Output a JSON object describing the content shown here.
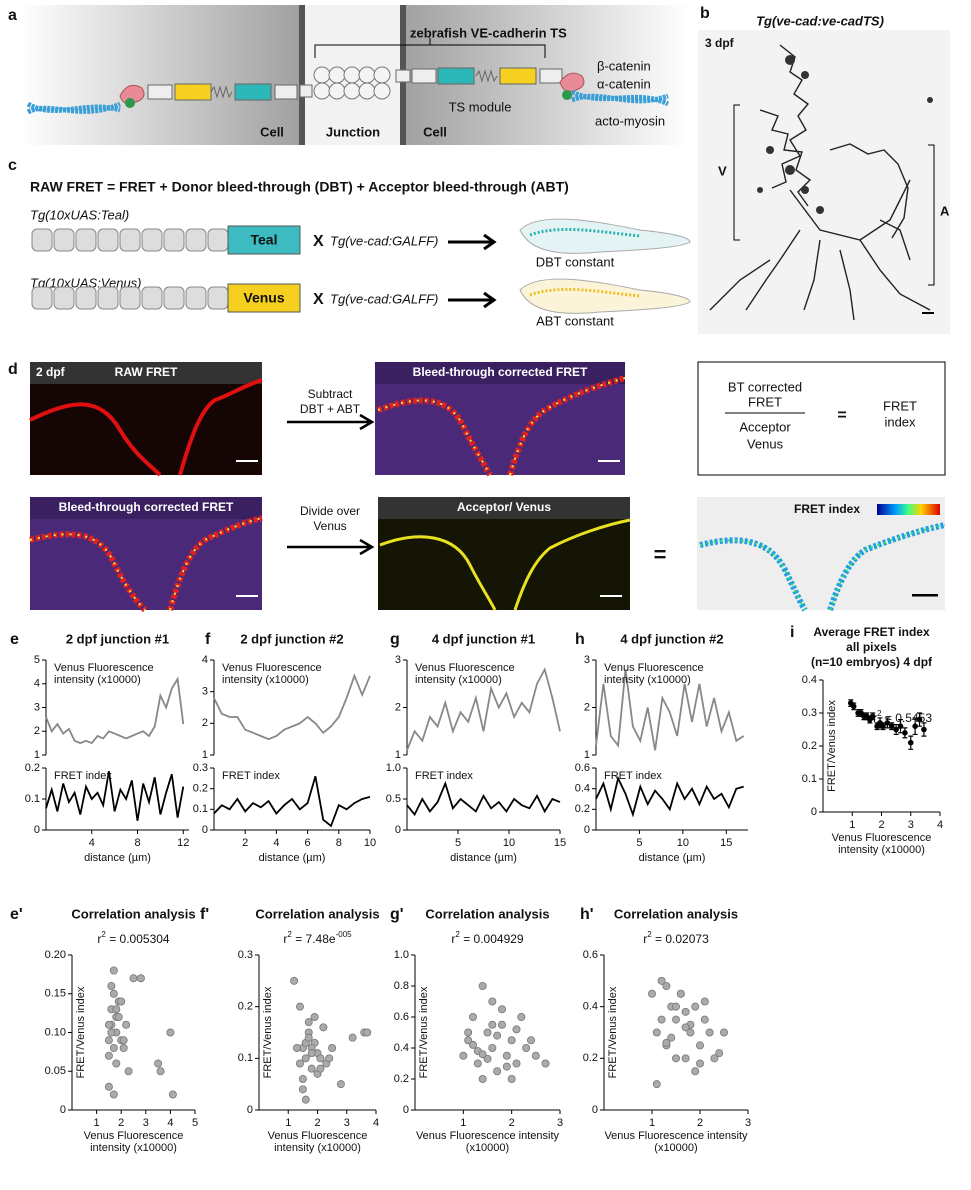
{
  "panels": {
    "a": {
      "letter": "a",
      "title": "zebrafish VE-cadherin TS",
      "labels": [
        "Cell",
        "Junction",
        "Cell"
      ],
      "ts_module": "TS module",
      "beta": "β-catenin",
      "alpha": "α-catenin",
      "acto": "acto-myosin"
    },
    "b": {
      "letter": "b",
      "title": "Tg(ve-cad:ve-cadTS)",
      "stage": "3 dpf",
      "v": "V",
      "a": "A"
    },
    "c": {
      "letter": "c",
      "equation": "RAW FRET = FRET + Donor bleed-through (DBT) + Acceptor bleed-through (ABT)",
      "rows": [
        {
          "transgene": "Tg(10xUAS:Teal)",
          "fp": "Teal",
          "cross": "X",
          "driver": "Tg(ve-cad:GALFF)",
          "result": "DBT constant"
        },
        {
          "transgene": "Tg(10xUAS:Venus)",
          "fp": "Venus",
          "cross": "X",
          "driver": "Tg(ve-cad:GALFF)",
          "result": "ABT constant"
        }
      ]
    },
    "d": {
      "letter": "d",
      "stage": "2 dpf",
      "images": [
        "RAW FRET",
        "Bleed-through corrected FRET",
        "Bleed-through corrected FRET",
        "Acceptor/ Venus",
        "FRET index"
      ],
      "steps": [
        [
          "Subtract",
          "DBT + ABT"
        ],
        [
          "Divide over",
          "Venus"
        ]
      ],
      "equals": "=",
      "formula": {
        "numerator": [
          "BT corrected",
          "FRET"
        ],
        "denominator": [
          "Acceptor",
          "Venus"
        ],
        "equals": "=",
        "result": [
          "FRET",
          "index"
        ]
      }
    }
  },
  "chart_data": [
    {
      "type": "line",
      "letter": "e",
      "title": "2 dpf junction #1",
      "xlabel": "distance (µm)",
      "xlim": [
        0,
        12.5
      ],
      "xticks": [
        4,
        8,
        12
      ],
      "x": [
        0,
        0.5,
        1,
        1.5,
        2,
        2.5,
        3,
        3.5,
        4,
        4.5,
        5,
        5.5,
        6,
        6.5,
        7,
        7.5,
        8,
        8.5,
        9,
        9.5,
        10,
        10.5,
        11,
        11.5,
        12
      ],
      "ylim": [
        1,
        5
      ],
      "yticks": [
        1,
        2,
        3,
        4,
        5
      ],
      "y2lim": [
        0,
        0.2
      ],
      "y2ticks": [
        0,
        0.1,
        0.2
      ],
      "series": [
        {
          "name": "Venus Fluorescence intensity (x10000)",
          "color": "#888888",
          "values": [
            2.6,
            2,
            2.3,
            1.9,
            2.1,
            1.6,
            1.5,
            1.6,
            1.5,
            1.8,
            1.7,
            2.0,
            1.9,
            1.8,
            1.7,
            1.8,
            1.9,
            2.0,
            1.8,
            2.2,
            3.5,
            3.0,
            3.8,
            4.2,
            2.3
          ]
        },
        {
          "name": "FRET index",
          "color": "#000000",
          "axis": "y2",
          "values": [
            0.07,
            0.13,
            0.06,
            0.15,
            0.09,
            0.12,
            0.05,
            0.14,
            0.1,
            0.12,
            0.08,
            0.19,
            0.06,
            0.13,
            0.1,
            0.16,
            0.03,
            0.15,
            0.09,
            0.17,
            0.05,
            0.12,
            0.18,
            0.04,
            0.14
          ]
        }
      ]
    },
    {
      "type": "line",
      "letter": "f",
      "title": "2 dpf junction #2",
      "xlabel": "distance (µm)",
      "xlim": [
        0,
        10
      ],
      "xticks": [
        2,
        4,
        6,
        8,
        10
      ],
      "x": [
        0,
        0.5,
        1,
        1.5,
        2,
        2.5,
        3,
        3.5,
        4,
        4.5,
        5,
        5.5,
        6,
        6.5,
        7,
        7.5,
        8,
        8.5,
        9,
        9.5,
        10
      ],
      "ylim": [
        1,
        4
      ],
      "yticks": [
        1,
        2,
        3,
        4
      ],
      "y2lim": [
        0,
        0.3
      ],
      "y2ticks": [
        0,
        0.1,
        0.2,
        0.3
      ],
      "series": [
        {
          "name": "Venus Fluorescence intensity (x10000)",
          "color": "#888888",
          "values": [
            2.8,
            2.3,
            2.2,
            2.2,
            1.8,
            1.7,
            1.6,
            1.5,
            1.6,
            1.8,
            1.9,
            2.0,
            2.2,
            2.0,
            1.7,
            1.9,
            2.2,
            2.8,
            3.5,
            2.9,
            3.5
          ]
        },
        {
          "name": "FRET index",
          "color": "#000000",
          "axis": "y2",
          "values": [
            0.08,
            0.12,
            0.1,
            0.15,
            0.09,
            0.13,
            0.11,
            0.14,
            0.08,
            0.12,
            0.15,
            0.1,
            0.13,
            0.26,
            0.05,
            0.02,
            0.12,
            0.1,
            0.13,
            0.15,
            0.16
          ]
        }
      ]
    },
    {
      "type": "line",
      "letter": "g",
      "title": "4 dpf junction #1",
      "xlabel": "distance (µm)",
      "xlim": [
        0,
        15
      ],
      "xticks": [
        5,
        10,
        15
      ],
      "x": [
        0,
        0.75,
        1.5,
        2.25,
        3,
        3.75,
        4.5,
        5.25,
        6,
        6.75,
        7.5,
        8.25,
        9,
        9.75,
        10.5,
        11.25,
        12,
        12.75,
        13.5,
        14.25,
        15
      ],
      "ylim": [
        1,
        3
      ],
      "yticks": [
        1,
        2,
        3
      ],
      "y2lim": [
        0,
        1
      ],
      "y2ticks": [
        0,
        0.5,
        {
          "value": 1,
          "label": "1.0"
        }
      ],
      "series": [
        {
          "name": "Venus Fluorescence intensity (x10000)",
          "color": "#888888",
          "values": [
            1.1,
            1.5,
            1.3,
            1.8,
            1.6,
            2.1,
            1.5,
            1.9,
            1.7,
            2.2,
            1.5,
            2.4,
            2.0,
            2.3,
            1.8,
            2.1,
            1.9,
            2.5,
            2.8,
            2.2,
            1.5
          ]
        },
        {
          "name": "FRET index",
          "color": "#000000",
          "axis": "y2",
          "values": [
            0.4,
            0.25,
            0.5,
            0.3,
            0.45,
            0.75,
            0.35,
            0.5,
            0.4,
            0.3,
            0.55,
            0.35,
            0.45,
            0.3,
            0.5,
            0.4,
            0.35,
            0.55,
            0.3,
            0.5,
            0.45
          ]
        }
      ]
    },
    {
      "type": "line",
      "letter": "h",
      "title": "4 dpf junction #2",
      "xlabel": "distance (µm)",
      "xlim": [
        0,
        17.5
      ],
      "xticks": [
        5,
        10,
        15
      ],
      "x": [
        0,
        0.85,
        1.7,
        2.55,
        3.4,
        4.25,
        5.1,
        5.95,
        6.8,
        7.65,
        8.5,
        9.35,
        10.2,
        11.05,
        11.9,
        12.75,
        13.6,
        14.45,
        15.3,
        16.15,
        17
      ],
      "ylim": [
        1,
        3
      ],
      "yticks": [
        1,
        2,
        3
      ],
      "y2lim": [
        0,
        0.6
      ],
      "y2ticks": [
        0,
        0.2,
        0.4,
        0.6
      ],
      "series": [
        {
          "name": "Venus Fluorescence intensity (x10000)",
          "color": "#888888",
          "values": [
            1.2,
            2.5,
            1.4,
            1.2,
            2.8,
            1.6,
            1.3,
            2.0,
            1.1,
            2.2,
            1.9,
            1.4,
            2.5,
            1.7,
            2.5,
            1.6,
            2.2,
            1.5,
            1.9,
            1.3,
            1.4
          ]
        },
        {
          "name": "FRET index",
          "color": "#000000",
          "axis": "y2",
          "values": [
            0.3,
            0.45,
            0.2,
            0.5,
            0.35,
            0.15,
            0.42,
            0.25,
            0.38,
            0.3,
            0.2,
            0.45,
            0.3,
            0.4,
            0.25,
            0.42,
            0.3,
            0.35,
            0.22,
            0.4,
            0.42
          ]
        }
      ]
    },
    {
      "type": "scatter",
      "letter": "i",
      "title": [
        "Average FRET index",
        "all pixels",
        "(n=10 embryos) 4 dpf"
      ],
      "annotation": [
        {
          "text": "r"
        },
        {
          "text": "2",
          "sup": true
        },
        {
          "text": " = 0.5453"
        }
      ],
      "xlabel": "Venus Fluorescence intensity (x10000)",
      "ylabel": "FRET/Venus index",
      "color": "#000000",
      "xlim": [
        0,
        4
      ],
      "xticks": [
        1,
        2,
        3,
        4
      ],
      "ylim": [
        0,
        0.4
      ],
      "yticks": [
        0,
        0.1,
        0.2,
        0.3,
        0.4
      ],
      "x": [
        0.95,
        1.05,
        1.2,
        1.3,
        1.4,
        1.5,
        1.6,
        1.7,
        1.85,
        1.95,
        2.05,
        2.2,
        2.35,
        2.5,
        2.65,
        2.8,
        3.0,
        3.15,
        3.3,
        3.45
      ],
      "values": [
        0.33,
        0.32,
        0.3,
        0.3,
        0.29,
        0.29,
        0.28,
        0.29,
        0.26,
        0.27,
        0.26,
        0.27,
        0.26,
        0.25,
        0.26,
        0.24,
        0.21,
        0.26,
        0.28,
        0.25
      ],
      "errors": [
        0.01,
        0.01,
        0.01,
        0.01,
        0.01,
        0.01,
        0.01,
        0.01,
        0.01,
        0.015,
        0.01,
        0.015,
        0.01,
        0.015,
        0.02,
        0.015,
        0.02,
        0.025,
        0.02,
        0.02
      ]
    },
    {
      "type": "scatter",
      "letter": "e'",
      "title": "Correlation analysis",
      "annotation": [
        {
          "text": "r"
        },
        {
          "text": "2",
          "sup": true
        },
        {
          "text": " = 0.005304"
        }
      ],
      "xlabel": "Venus Fluorescence intensity (x10000)",
      "ylabel": "FRET/Venus index",
      "color": "#aaaaaa",
      "xlim": [
        0,
        5
      ],
      "xticks": [
        1,
        2,
        3,
        4,
        5
      ],
      "ylim": [
        0,
        0.2
      ],
      "yticks": [
        0,
        0.05,
        {
          "value": 0.1,
          "label": "0.10"
        },
        0.15,
        {
          "value": 0.2,
          "label": "0.20"
        }
      ],
      "x": [
        1.5,
        1.6,
        1.7,
        1.8,
        1.5,
        1.6,
        1.9,
        2.0,
        1.7,
        1.8,
        2.1,
        2.2,
        1.5,
        1.6,
        1.8,
        2.5,
        2.8,
        3.5,
        3.6,
        4.0,
        4.1,
        1.7,
        1.9,
        2.0,
        2.3,
        1.6,
        1.8,
        2.1,
        1.5,
        1.7
      ],
      "values": [
        0.09,
        0.13,
        0.18,
        0.1,
        0.07,
        0.11,
        0.14,
        0.09,
        0.02,
        0.12,
        0.08,
        0.11,
        0.03,
        0.16,
        0.06,
        0.17,
        0.17,
        0.06,
        0.05,
        0.1,
        0.02,
        0.08,
        0.12,
        0.14,
        0.05,
        0.1,
        0.13,
        0.09,
        0.11,
        0.15
      ]
    },
    {
      "type": "scatter",
      "letter": "f'",
      "title": "Correlation analysis",
      "annotation": [
        {
          "text": "r"
        },
        {
          "text": "2",
          "sup": true
        },
        {
          "text": " = 7.48e"
        },
        {
          "text": "-005",
          "sup": true
        }
      ],
      "xlabel": "Venus Fluorescence intensity (x10000)",
      "ylabel": "FRET/Venus index",
      "color": "#aaaaaa",
      "xlim": [
        0,
        4
      ],
      "xticks": [
        1,
        2,
        3,
        4
      ],
      "ylim": [
        0,
        0.3
      ],
      "yticks": [
        0,
        0.1,
        0.2,
        0.3
      ],
      "x": [
        1.2,
        1.4,
        1.5,
        1.6,
        1.7,
        1.8,
        1.9,
        2.0,
        1.5,
        1.6,
        1.7,
        1.8,
        2.1,
        2.2,
        2.3,
        2.5,
        2.8,
        3.2,
        3.6,
        3.7,
        1.4,
        1.6,
        1.9,
        2.0,
        1.8,
        1.5,
        2.4,
        1.7,
        1.3,
        2.1
      ],
      "values": [
        0.25,
        0.2,
        0.12,
        0.1,
        0.15,
        0.08,
        0.13,
        0.11,
        0.06,
        0.02,
        0.17,
        0.12,
        0.1,
        0.16,
        0.09,
        0.12,
        0.05,
        0.14,
        0.15,
        0.15,
        0.09,
        0.13,
        0.18,
        0.07,
        0.11,
        0.04,
        0.1,
        0.14,
        0.12,
        0.08
      ]
    },
    {
      "type": "scatter",
      "letter": "g'",
      "title": "Correlation analysis",
      "annotation": [
        {
          "text": "r"
        },
        {
          "text": "2",
          "sup": true
        },
        {
          "text": " = 0.004929"
        }
      ],
      "xlabel": "Venus Fluorescence intensity (x10000)",
      "ylabel": "FRET/Venus index",
      "color": "#aaaaaa",
      "xlim": [
        0,
        3
      ],
      "xticks": [
        1,
        2,
        3
      ],
      "ylim": [
        0,
        1
      ],
      "yticks": [
        0,
        0.2,
        0.4,
        0.6,
        0.8,
        {
          "value": 1,
          "label": "1.0"
        }
      ],
      "x": [
        1.0,
        1.1,
        1.2,
        1.3,
        1.4,
        1.5,
        1.6,
        1.7,
        1.8,
        1.9,
        2.0,
        2.1,
        2.2,
        2.3,
        2.5,
        2.7,
        1.2,
        1.4,
        1.6,
        1.8,
        2.0,
        1.1,
        1.3,
        1.5,
        1.7,
        1.9,
        2.1,
        1.6,
        1.4,
        2.4
      ],
      "values": [
        0.35,
        0.45,
        0.6,
        0.3,
        0.8,
        0.5,
        0.4,
        0.25,
        0.55,
        0.35,
        0.45,
        0.3,
        0.6,
        0.4,
        0.35,
        0.3,
        0.42,
        0.2,
        0.55,
        0.65,
        0.2,
        0.5,
        0.38,
        0.33,
        0.48,
        0.28,
        0.52,
        0.7,
        0.36,
        0.45
      ]
    },
    {
      "type": "scatter",
      "letter": "h'",
      "title": "Correlation analysis",
      "annotation": [
        {
          "text": "r"
        },
        {
          "text": "2",
          "sup": true
        },
        {
          "text": " = 0.02073"
        }
      ],
      "xlabel": "Venus Fluorescence intensity (x10000)",
      "ylabel": "FRET/Venus index",
      "color": "#aaaaaa",
      "xlim": [
        0,
        3
      ],
      "xticks": [
        1,
        2,
        3
      ],
      "ylim": [
        0,
        0.6
      ],
      "yticks": [
        0,
        0.2,
        0.4,
        0.6
      ],
      "x": [
        1.0,
        1.1,
        1.2,
        1.3,
        1.4,
        1.5,
        1.6,
        1.7,
        1.8,
        1.9,
        2.0,
        2.1,
        2.2,
        2.3,
        2.4,
        2.5,
        1.1,
        1.3,
        1.5,
        1.7,
        1.9,
        2.1,
        1.2,
        1.4,
        1.6,
        1.8,
        2.0,
        1.5,
        1.3,
        1.7
      ],
      "values": [
        0.45,
        0.3,
        0.5,
        0.25,
        0.4,
        0.35,
        0.45,
        0.2,
        0.3,
        0.4,
        0.25,
        0.35,
        0.3,
        0.2,
        0.22,
        0.3,
        0.1,
        0.48,
        0.2,
        0.38,
        0.15,
        0.42,
        0.35,
        0.28,
        0.45,
        0.33,
        0.18,
        0.4,
        0.26,
        0.32
      ]
    }
  ]
}
